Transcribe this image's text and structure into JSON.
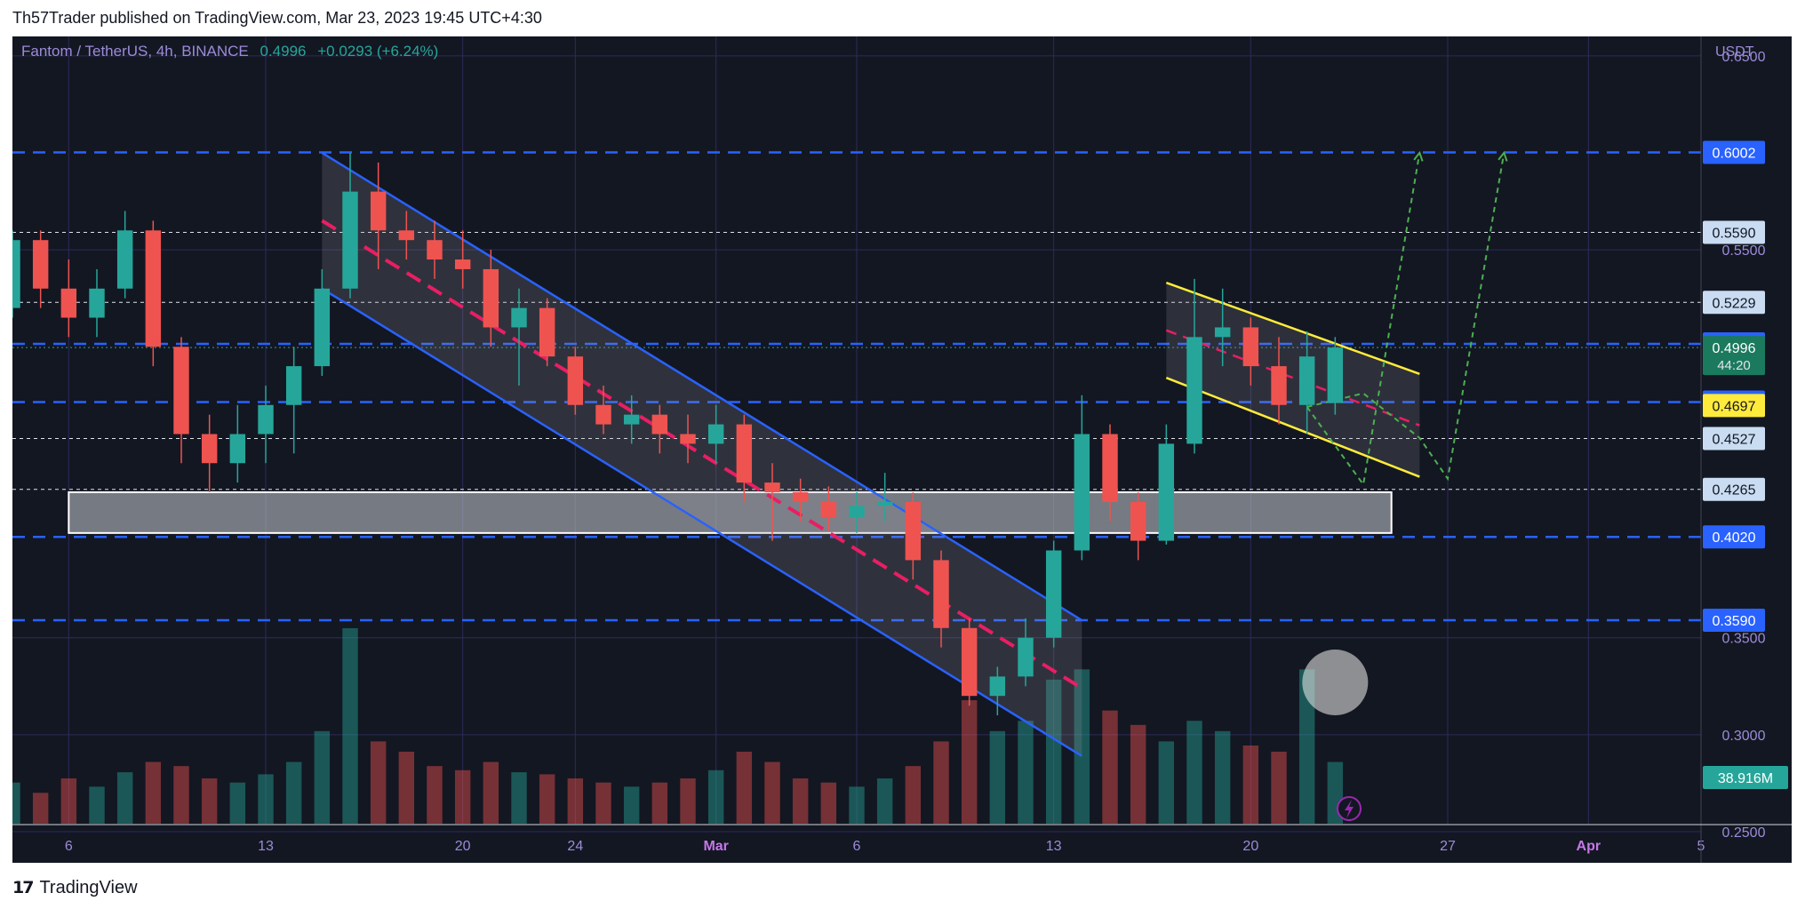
{
  "header": {
    "publisher_line": "Th57Trader published on TradingView.com, Mar 23, 2023 19:45 UTC+4:30"
  },
  "footer": {
    "brand": "TradingView"
  },
  "colors": {
    "background": "#131722",
    "up_candle": "#26a69a",
    "down_candle": "#ef5350",
    "channel_blue": "#2962ff",
    "flag_yellow": "#ffeb3b",
    "midline_pink": "#e91e63",
    "projection_green": "#4caf50",
    "grid": "#2f2a5a"
  },
  "chart_data": {
    "type": "candlestick",
    "symbol": "Fantom / TetherUS",
    "interval": "4h",
    "exchange": "BINANCE",
    "last_price": "0.4996",
    "change": "+0.0293 (+6.24%)",
    "countdown": "44:20",
    "currency": "USDT",
    "y_ticks": [
      "0.6500",
      "0.5500",
      "0.3500",
      "0.3000",
      "0.2500"
    ],
    "x_ticks": [
      "6",
      "13",
      "20",
      "24",
      "Mar",
      "6",
      "13",
      "20",
      "27",
      "Apr",
      "5"
    ],
    "ylim": [
      0.25,
      0.66
    ],
    "x_domain": [
      "2023-02-04",
      "2023-04-05"
    ],
    "price_levels": [
      {
        "label": "0.6002",
        "value": 0.6002,
        "style": "blue-dashed"
      },
      {
        "label": "0.5590",
        "value": 0.559,
        "style": "white-dotted"
      },
      {
        "label": "0.5229",
        "value": 0.5229,
        "style": "white-dotted"
      },
      {
        "label": "0.5015",
        "value": 0.5015,
        "style": "blue-dashed"
      },
      {
        "label": "0.4715",
        "value": 0.4715,
        "style": "blue-dashed"
      },
      {
        "label": "0.4697",
        "value": 0.4697,
        "style": "yellow"
      },
      {
        "label": "0.4527",
        "value": 0.4527,
        "style": "white-dotted"
      },
      {
        "label": "0.4265",
        "value": 0.4265,
        "style": "white-dotted"
      },
      {
        "label": "0.4020",
        "value": 0.402,
        "style": "blue-dashed"
      },
      {
        "label": "0.3590",
        "value": 0.359,
        "style": "blue-dashed"
      }
    ],
    "volume_label": "38.916M",
    "support_zone": {
      "from": "2023-02-06",
      "to": "2023-03-25",
      "low": 0.404,
      "high": 0.425
    },
    "descending_channel": {
      "upper": [
        [
          "2023-02-15",
          0.6
        ],
        [
          "2023-03-14",
          0.359
        ]
      ],
      "lower": [
        [
          "2023-02-15",
          0.53
        ],
        [
          "2023-03-14",
          0.289
        ]
      ],
      "mid": [
        [
          "2023-02-15",
          0.565
        ],
        [
          "2023-03-14",
          0.324
        ]
      ]
    },
    "bull_flag": {
      "upper": [
        [
          "2023-03-17",
          0.533
        ],
        [
          "2023-03-26",
          0.486
        ]
      ],
      "lower": [
        [
          "2023-03-17",
          0.484
        ],
        [
          "2023-03-26",
          0.433
        ]
      ]
    },
    "projections": [
      [
        [
          "2023-03-22",
          0.469
        ],
        [
          "2023-03-24",
          0.429
        ],
        [
          "2023-03-26",
          0.6
        ]
      ],
      [
        [
          "2023-03-22",
          0.469
        ],
        [
          "2023-03-24",
          0.476
        ],
        [
          "2023-03-26",
          0.453
        ],
        [
          "2023-03-27",
          0.432
        ],
        [
          "2023-03-29",
          0.6
        ]
      ]
    ],
    "candles": [
      [
        "2023-02-04",
        0.52,
        0.56,
        0.515,
        0.555
      ],
      [
        "2023-02-05",
        0.555,
        0.56,
        0.52,
        0.53
      ],
      [
        "2023-02-06",
        0.53,
        0.545,
        0.505,
        0.515
      ],
      [
        "2023-02-07",
        0.515,
        0.54,
        0.505,
        0.53
      ],
      [
        "2023-02-08",
        0.53,
        0.57,
        0.525,
        0.56
      ],
      [
        "2023-02-09",
        0.56,
        0.565,
        0.49,
        0.5
      ],
      [
        "2023-02-10",
        0.5,
        0.505,
        0.44,
        0.455
      ],
      [
        "2023-02-11",
        0.455,
        0.465,
        0.425,
        0.44
      ],
      [
        "2023-02-12",
        0.44,
        0.47,
        0.43,
        0.455
      ],
      [
        "2023-02-13",
        0.455,
        0.48,
        0.44,
        0.47
      ],
      [
        "2023-02-14",
        0.47,
        0.5,
        0.445,
        0.49
      ],
      [
        "2023-02-15",
        0.49,
        0.54,
        0.485,
        0.53
      ],
      [
        "2023-02-16",
        0.53,
        0.6,
        0.525,
        0.58
      ],
      [
        "2023-02-17",
        0.58,
        0.595,
        0.54,
        0.56
      ],
      [
        "2023-02-18",
        0.56,
        0.57,
        0.545,
        0.555
      ],
      [
        "2023-02-19",
        0.555,
        0.565,
        0.535,
        0.545
      ],
      [
        "2023-02-20",
        0.545,
        0.56,
        0.53,
        0.54
      ],
      [
        "2023-02-21",
        0.54,
        0.55,
        0.5,
        0.51
      ],
      [
        "2023-02-22",
        0.51,
        0.53,
        0.48,
        0.52
      ],
      [
        "2023-02-23",
        0.52,
        0.525,
        0.49,
        0.495
      ],
      [
        "2023-02-24",
        0.495,
        0.5,
        0.465,
        0.47
      ],
      [
        "2023-02-25",
        0.47,
        0.48,
        0.455,
        0.46
      ],
      [
        "2023-02-26",
        0.46,
        0.475,
        0.45,
        0.465
      ],
      [
        "2023-02-27",
        0.465,
        0.47,
        0.445,
        0.455
      ],
      [
        "2023-02-28",
        0.455,
        0.465,
        0.44,
        0.45
      ],
      [
        "2023-03-01",
        0.45,
        0.47,
        0.44,
        0.46
      ],
      [
        "2023-03-02",
        0.46,
        0.465,
        0.42,
        0.43
      ],
      [
        "2023-03-03",
        0.43,
        0.44,
        0.4,
        0.425
      ],
      [
        "2023-03-04",
        0.425,
        0.432,
        0.41,
        0.42
      ],
      [
        "2023-03-05",
        0.42,
        0.428,
        0.405,
        0.412
      ],
      [
        "2023-03-06",
        0.412,
        0.425,
        0.404,
        0.418
      ],
      [
        "2023-03-07",
        0.418,
        0.435,
        0.41,
        0.42
      ],
      [
        "2023-03-08",
        0.42,
        0.425,
        0.38,
        0.39
      ],
      [
        "2023-03-09",
        0.39,
        0.395,
        0.345,
        0.355
      ],
      [
        "2023-03-10",
        0.355,
        0.36,
        0.315,
        0.32
      ],
      [
        "2023-03-11",
        0.32,
        0.335,
        0.31,
        0.33
      ],
      [
        "2023-03-12",
        0.33,
        0.36,
        0.325,
        0.35
      ],
      [
        "2023-03-13",
        0.35,
        0.4,
        0.345,
        0.395
      ],
      [
        "2023-03-14",
        0.395,
        0.475,
        0.39,
        0.455
      ],
      [
        "2023-03-15",
        0.455,
        0.46,
        0.41,
        0.42
      ],
      [
        "2023-03-16",
        0.42,
        0.425,
        0.39,
        0.4
      ],
      [
        "2023-03-17",
        0.4,
        0.46,
        0.398,
        0.45
      ],
      [
        "2023-03-18",
        0.45,
        0.535,
        0.445,
        0.505
      ],
      [
        "2023-03-19",
        0.505,
        0.53,
        0.49,
        0.51
      ],
      [
        "2023-03-20",
        0.51,
        0.515,
        0.48,
        0.49
      ],
      [
        "2023-03-21",
        0.49,
        0.505,
        0.46,
        0.47
      ],
      [
        "2023-03-22",
        0.47,
        0.508,
        0.455,
        0.495
      ],
      [
        "2023-03-23",
        0.471,
        0.505,
        0.465,
        0.4996
      ]
    ],
    "volumes": [
      0.2,
      0.15,
      0.22,
      0.18,
      0.25,
      0.3,
      0.28,
      0.22,
      0.2,
      0.24,
      0.3,
      0.45,
      0.95,
      0.4,
      0.35,
      0.28,
      0.26,
      0.3,
      0.25,
      0.24,
      0.22,
      0.2,
      0.18,
      0.2,
      0.22,
      0.26,
      0.35,
      0.3,
      0.22,
      0.2,
      0.18,
      0.22,
      0.28,
      0.4,
      0.6,
      0.45,
      0.5,
      0.7,
      0.75,
      0.55,
      0.48,
      0.4,
      0.5,
      0.45,
      0.38,
      0.35,
      0.75,
      0.3
    ]
  }
}
